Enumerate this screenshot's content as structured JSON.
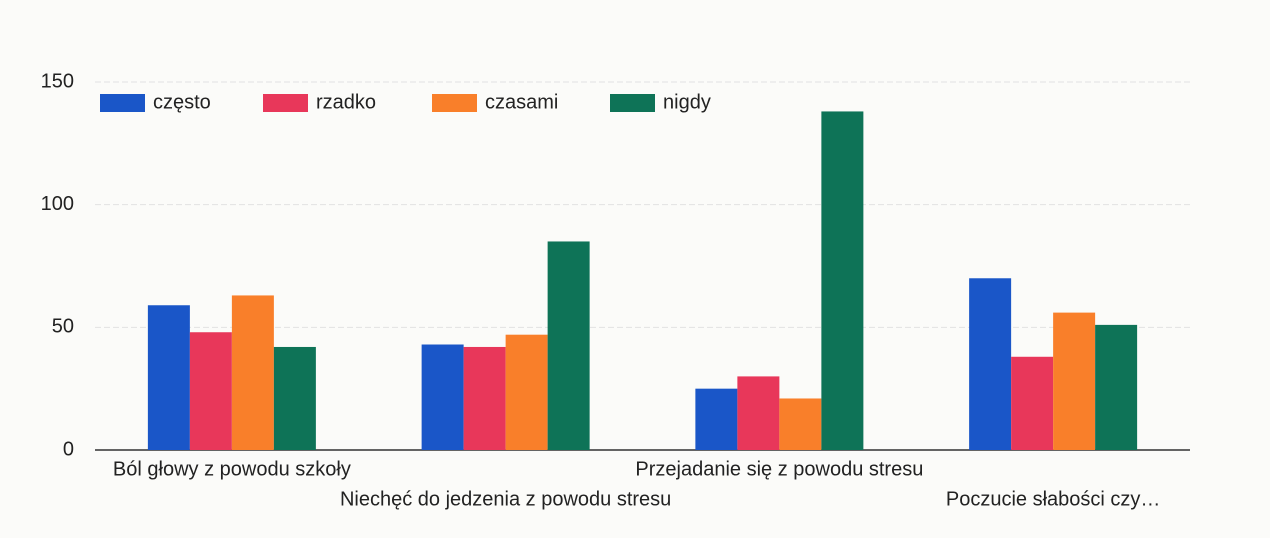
{
  "chart_data": {
    "type": "bar",
    "categories": [
      "Ból głowy z powodu szkoły",
      "Niechęć do jedzenia z powodu stresu",
      "Przejadanie się z powodu stresu",
      "Poczucie słabości czy…"
    ],
    "series": [
      {
        "name": "często",
        "color": "#1a56c8",
        "values": [
          59,
          43,
          25,
          70
        ]
      },
      {
        "name": "rzadko",
        "color": "#e8375a",
        "values": [
          48,
          42,
          30,
          38
        ]
      },
      {
        "name": "czasami",
        "color": "#f97f2a",
        "values": [
          63,
          47,
          21,
          56
        ]
      },
      {
        "name": "nigdy",
        "color": "#0e7357",
        "values": [
          42,
          85,
          138,
          51
        ]
      }
    ],
    "ylim": [
      0,
      150
    ],
    "yticks": [
      0,
      50,
      100,
      150
    ],
    "grid": true,
    "legend": "top-left"
  }
}
